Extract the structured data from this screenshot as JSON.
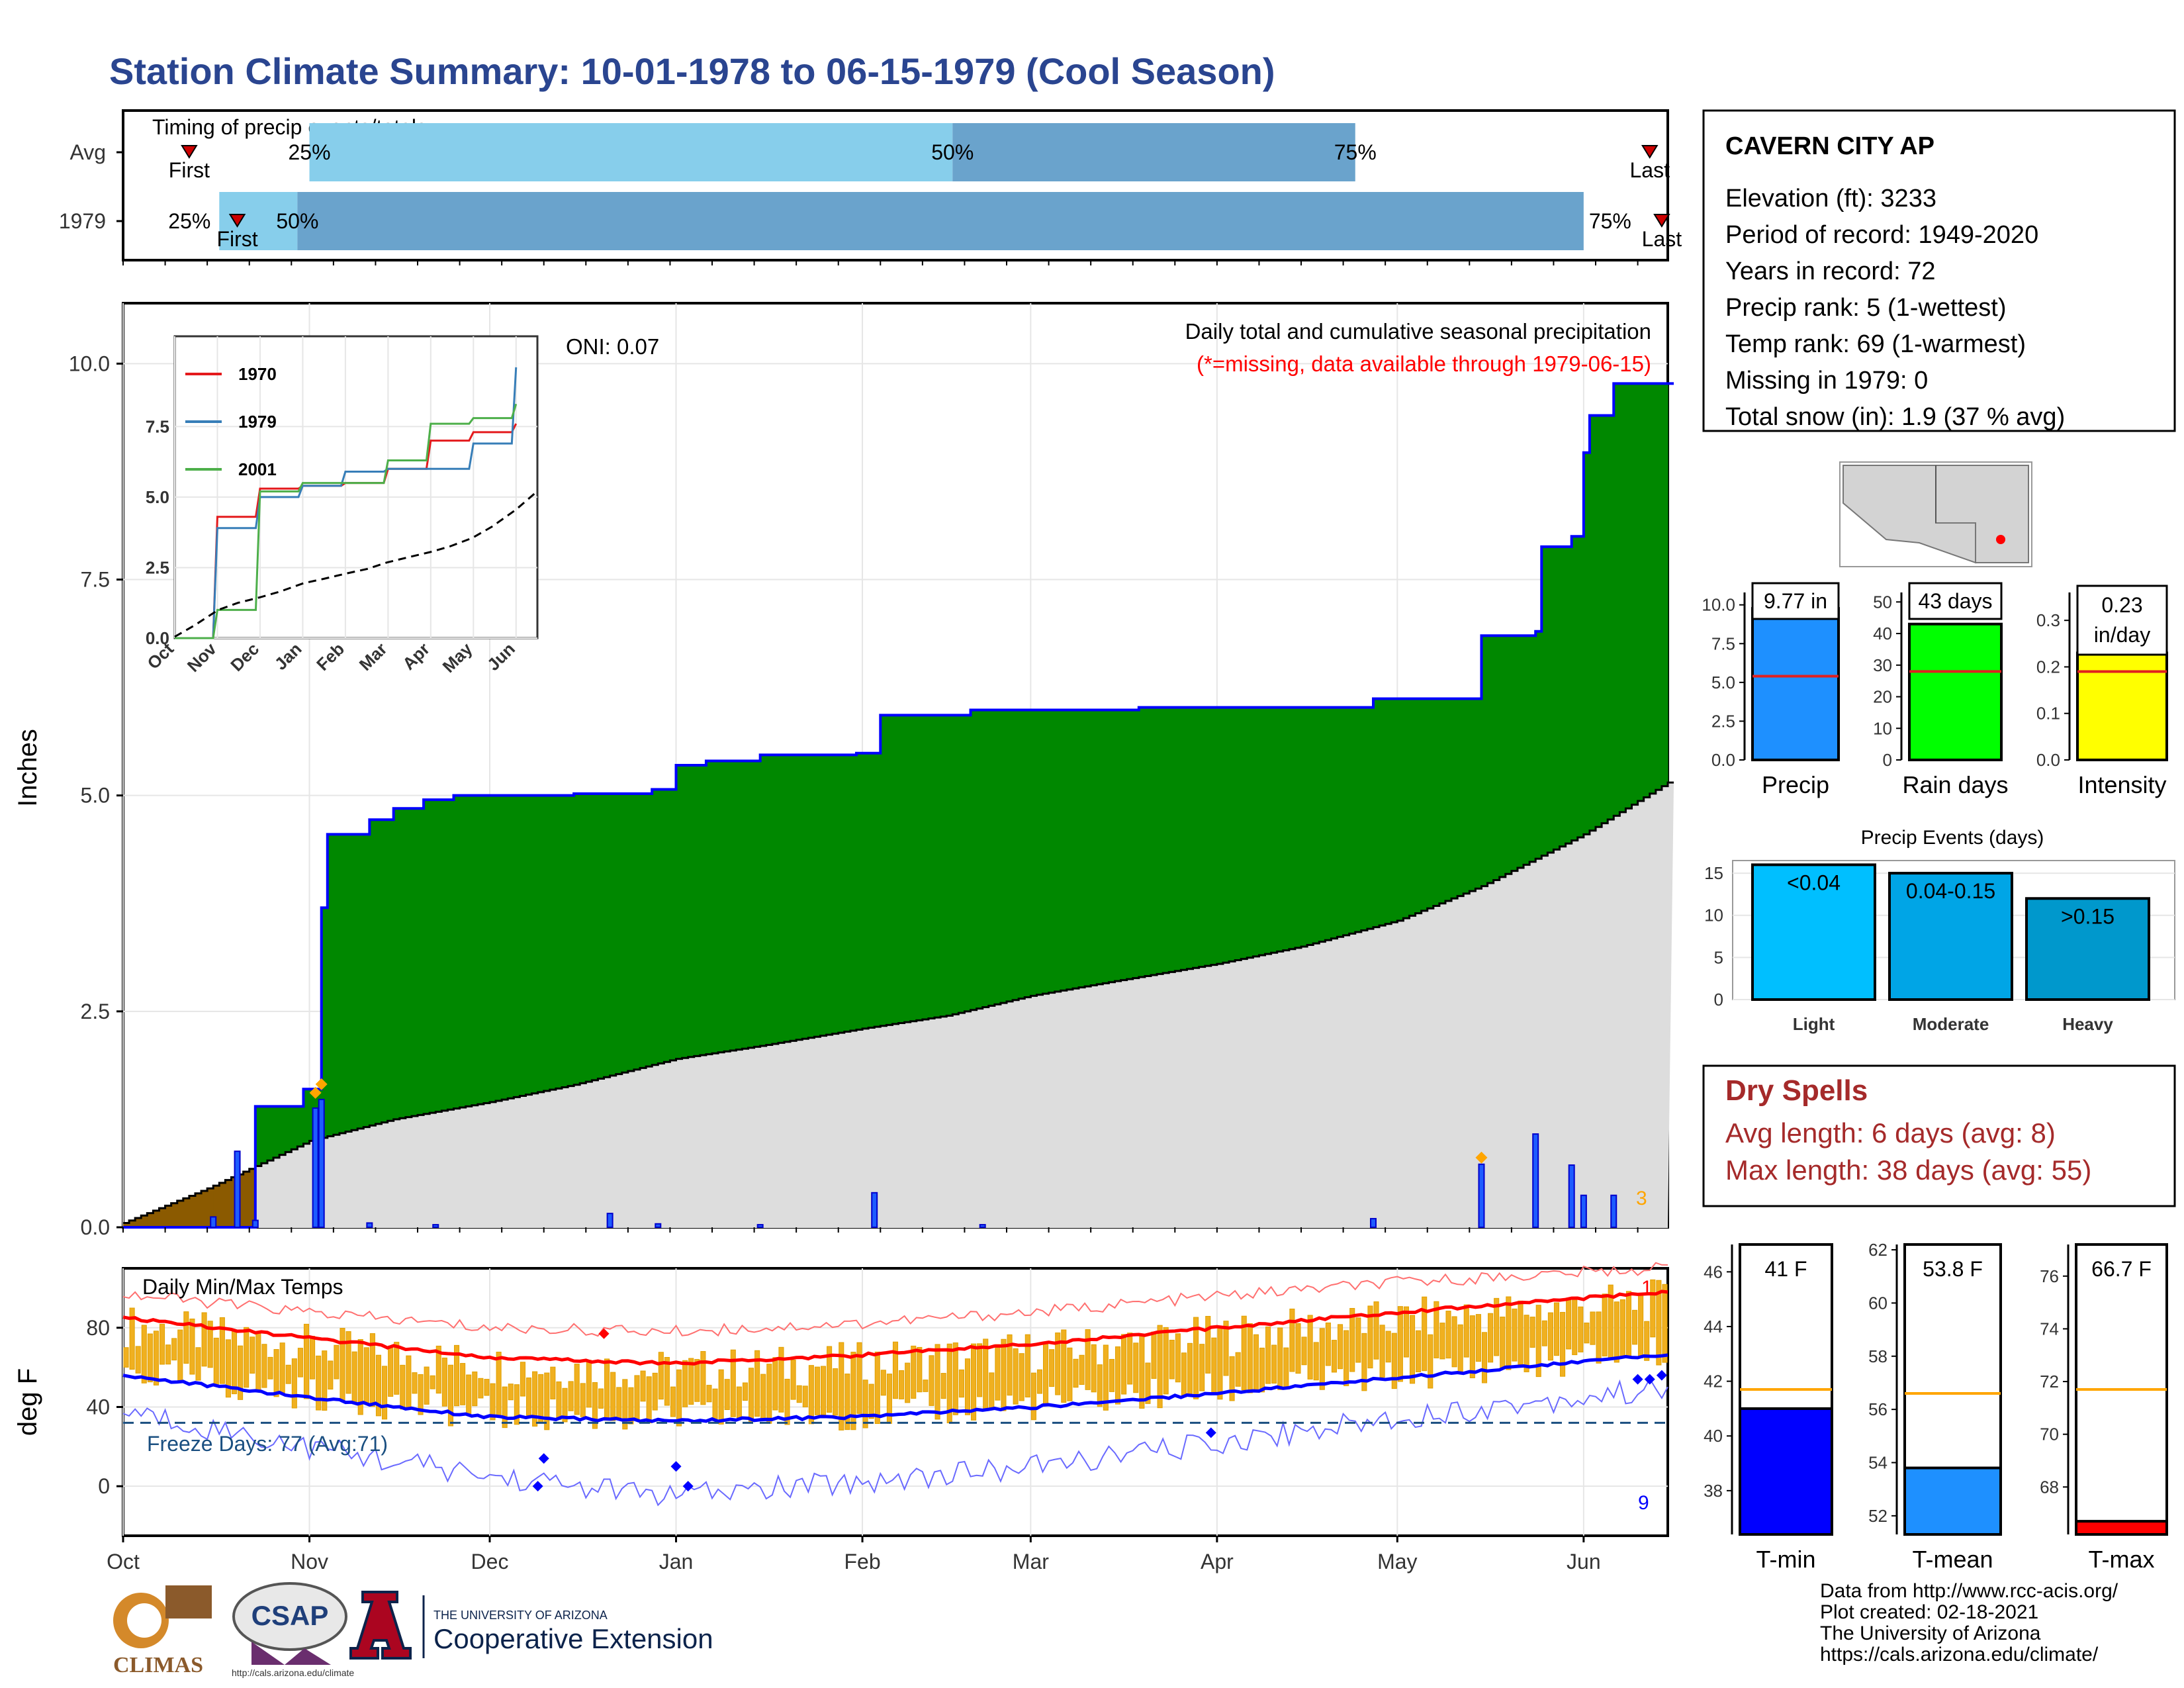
{
  "title": "Station Climate Summary: 10-01-1978 to 06-15-1979 (Cool Season)",
  "timing": {
    "caption": "Timing of precip events/totals",
    "rows": [
      {
        "label": "Avg",
        "first_date": "1978-10-12",
        "p25": "1978-11-01",
        "p50": "1979-02-16",
        "p75": "1979-04-24",
        "last_date": "1979-06-12",
        "first_label": "First",
        "last_label": "Last"
      },
      {
        "label": "1979",
        "first_date": "1978-10-20",
        "p25": "1978-10-17",
        "p50": "1978-10-30",
        "p75": "1979-06-01",
        "last_date": "1979-06-14",
        "first_label": "First",
        "last_label": "Last"
      }
    ],
    "pct_labels": [
      "25%",
      "50%",
      "75%"
    ]
  },
  "station": {
    "name": "CAVERN CITY AP",
    "lines": [
      "Elevation (ft): 3233",
      "Period of record: 1949-2020",
      "Years in record: 72",
      "Precip rank: 5 (1-wettest)",
      "Temp rank: 69 (1-warmest)",
      "Missing in 1979: 0",
      "Total snow (in): 1.9 (37 % avg)"
    ]
  },
  "main_precip": {
    "title": "Daily total and cumulative seasonal precipitation",
    "missing_note": "(*=missing, data available through 1979-06-15)",
    "oni": "ONI: 0.07",
    "ylabel": "Inches",
    "yticks": [
      "0.0",
      "2.5",
      "5.0",
      "7.5",
      "10.0"
    ],
    "missing_count": "3",
    "colors": {
      "above": "#008800",
      "below": "#8B5A00",
      "avg_fill": "#dddddd",
      "line": "#0000ff"
    }
  },
  "chart_data": [
    {
      "type": "area",
      "title": "Daily total and cumulative seasonal precipitation",
      "ylabel": "Inches",
      "ylim": [
        0,
        10.7
      ],
      "x_unit": "date",
      "series": [
        {
          "name": "Cumulative 1979",
          "x": [
            "1978-10-01",
            "1978-10-20",
            "1978-10-23",
            "1978-10-31",
            "1978-11-03",
            "1978-11-04",
            "1978-11-11",
            "1978-11-15",
            "1978-11-20",
            "1978-11-25",
            "1978-12-01",
            "1978-12-15",
            "1978-12-28",
            "1979-01-01",
            "1979-01-06",
            "1979-01-15",
            "1979-01-31",
            "1979-02-04",
            "1979-02-19",
            "1979-03-19",
            "1979-04-27",
            "1979-05-15",
            "1979-05-24",
            "1979-05-25",
            "1979-05-30",
            "1979-06-01",
            "1979-06-02",
            "1979-06-06",
            "1979-06-15"
          ],
          "y": [
            0.0,
            0.0,
            1.4,
            1.6,
            3.7,
            4.55,
            4.72,
            4.85,
            4.95,
            5.0,
            5.0,
            5.02,
            5.07,
            5.35,
            5.4,
            5.47,
            5.49,
            5.93,
            5.99,
            6.02,
            6.12,
            6.85,
            6.9,
            7.88,
            8.0,
            8.97,
            9.4,
            9.77,
            9.77
          ]
        },
        {
          "name": "Average cumulative",
          "x": [
            "1978-10-01",
            "1978-10-15",
            "1978-11-01",
            "1978-11-15",
            "1978-12-01",
            "1978-12-15",
            "1979-01-01",
            "1979-01-15",
            "1979-02-01",
            "1979-02-15",
            "1979-03-01",
            "1979-03-15",
            "1979-04-01",
            "1979-04-15",
            "1979-05-01",
            "1979-05-15",
            "1979-06-01",
            "1979-06-15"
          ],
          "y": [
            0.05,
            0.45,
            1.0,
            1.25,
            1.45,
            1.65,
            1.95,
            2.1,
            2.3,
            2.45,
            2.68,
            2.85,
            3.05,
            3.25,
            3.55,
            3.95,
            4.55,
            5.15
          ]
        },
        {
          "name": "Daily precipitation",
          "x": [
            "1978-10-16",
            "1978-10-20",
            "1978-10-23",
            "1978-11-02",
            "1978-11-03",
            "1978-11-11",
            "1978-11-22",
            "1978-12-21",
            "1978-12-29",
            "1979-01-15",
            "1979-02-03",
            "1979-02-21",
            "1979-04-27",
            "1979-05-15",
            "1979-05-24",
            "1979-05-30",
            "1979-06-01",
            "1979-06-06"
          ],
          "y": [
            0.12,
            0.88,
            0.08,
            1.38,
            1.48,
            0.05,
            0.03,
            0.16,
            0.04,
            0.03,
            0.4,
            0.03,
            0.1,
            0.73,
            1.08,
            0.72,
            0.37,
            0.37
          ]
        }
      ]
    },
    {
      "type": "line",
      "title": "Historical cumulative (inset)",
      "x": [
        "Oct",
        "Nov",
        "Dec",
        "Jan",
        "Feb",
        "Mar",
        "Apr",
        "May",
        "Jun"
      ],
      "ylim": [
        0,
        10.7
      ],
      "series": [
        {
          "name": "1970",
          "values": [
            0.0,
            4.3,
            5.3,
            5.4,
            5.5,
            6.0,
            7.0,
            7.3,
            7.6
          ]
        },
        {
          "name": "1979",
          "values": [
            0.0,
            3.9,
            5.0,
            5.4,
            5.9,
            6.0,
            6.0,
            6.9,
            9.6
          ]
        },
        {
          "name": "2001",
          "values": [
            0.0,
            1.0,
            5.2,
            5.5,
            5.5,
            6.3,
            7.6,
            7.8,
            8.3
          ]
        }
      ]
    },
    {
      "type": "bar",
      "title": "Precip",
      "categories": [
        "Precip"
      ],
      "values": [
        9.77
      ],
      "avg": 5.4,
      "label": "9.77 in",
      "ylim": [
        0,
        10.8
      ]
    },
    {
      "type": "bar",
      "title": "Rain days",
      "categories": [
        "Rain days"
      ],
      "values": [
        43
      ],
      "avg": 28,
      "label": "43 days",
      "ylim": [
        0,
        53
      ]
    },
    {
      "type": "bar",
      "title": "Intensity",
      "categories": [
        "Intensity"
      ],
      "values": [
        0.23
      ],
      "avg": 0.19,
      "label": "0.23 in/day",
      "ylim": [
        0,
        0.36
      ]
    },
    {
      "type": "bar",
      "title": "Precip Events (days)",
      "categories": [
        "Light",
        "Moderate",
        "Heavy"
      ],
      "labels": [
        "<0.04",
        "0.04-0.15",
        ">0.15"
      ],
      "values": [
        16,
        15,
        12
      ],
      "ylim": [
        0,
        16.5
      ]
    },
    {
      "type": "line",
      "title": "Daily Min/Max Temps",
      "ylabel": "deg F",
      "ylim": [
        -25,
        110
      ],
      "x": [
        "Oct",
        "Nov",
        "Dec",
        "Jan",
        "Feb",
        "Mar",
        "Apr",
        "May",
        "Jun"
      ],
      "series": [
        {
          "name": "Avg max",
          "values": [
            85,
            75,
            65,
            62,
            66,
            72,
            80,
            88,
            95
          ]
        },
        {
          "name": "Avg min",
          "values": [
            56,
            45,
            35,
            33,
            35,
            40,
            47,
            55,
            63
          ]
        },
        {
          "name": "Record high",
          "values": [
            97,
            88,
            80,
            78,
            82,
            88,
            96,
            103,
            108
          ]
        },
        {
          "name": "Record low",
          "values": [
            38,
            20,
            5,
            -5,
            2,
            10,
            22,
            35,
            45
          ]
        }
      ],
      "freeze_line": 32
    },
    {
      "type": "bar",
      "title": "T-min",
      "categories": [
        "T-min"
      ],
      "values": [
        41
      ],
      "avg": 41.7,
      "label": "41 F",
      "ylim": [
        36.4,
        47
      ]
    },
    {
      "type": "bar",
      "title": "T-mean",
      "categories": [
        "T-mean"
      ],
      "values": [
        53.8
      ],
      "avg": 56.6,
      "label": "53.8 F",
      "ylim": [
        51.3,
        62.2
      ]
    },
    {
      "type": "bar",
      "title": "T-max",
      "categories": [
        "T-max"
      ],
      "values": [
        66.7
      ],
      "avg": 71.7,
      "label": "66.7 F",
      "ylim": [
        66.2,
        77.2
      ]
    }
  ],
  "inset": {
    "legend": [
      "1970",
      "1979",
      "2001"
    ],
    "colors": [
      "#e41a1c",
      "#377eb8",
      "#4daf4a"
    ],
    "xticks": [
      "Oct",
      "Nov",
      "Dec",
      "Jan",
      "Feb",
      "Mar",
      "Apr",
      "May",
      "Jun"
    ],
    "yticks": [
      "0.0",
      "2.5",
      "5.0",
      "7.5"
    ]
  },
  "small_bars": {
    "precip": {
      "label": "Precip",
      "value_label": "9.77 in",
      "color": "#1e90ff",
      "yticks": [
        "0.0",
        "2.5",
        "5.0",
        "7.5",
        "10.0"
      ]
    },
    "raindays": {
      "label": "Rain days",
      "value_label": "43 days",
      "color": "#00ff00",
      "yticks": [
        "0",
        "10",
        "20",
        "30",
        "40",
        "50"
      ]
    },
    "intensity": {
      "label": "Intensity",
      "value_label_1": "0.23",
      "value_label_2": "in/day",
      "color": "#ffff00",
      "yticks": [
        "0.0",
        "0.1",
        "0.2",
        "0.3"
      ]
    }
  },
  "events": {
    "title": "Precip Events (days)",
    "categories": [
      "Light",
      "Moderate",
      "Heavy"
    ],
    "labels": [
      "<0.04",
      "0.04-0.15",
      ">0.15"
    ],
    "colors": [
      "#00bfff",
      "#00a5e6",
      "#0098cc"
    ],
    "yticks": [
      "0",
      "5",
      "10",
      "15"
    ]
  },
  "dry_spells": {
    "title": "Dry Spells",
    "line1": "Avg length: 6 days (avg: 8)",
    "line2": "Max length: 38 days (avg: 55)",
    "color": "#a52a2a"
  },
  "temps": {
    "title": "Daily Min/Max Temps",
    "ylabel": "deg F",
    "yticks": [
      "0",
      "40",
      "80"
    ],
    "freeze": "Freeze Days: 77 (Avg:71)",
    "high_count": "1",
    "low_count": "9",
    "xticks": [
      "Oct",
      "Nov",
      "Dec",
      "Jan",
      "Feb",
      "Mar",
      "Apr",
      "May",
      "Jun"
    ]
  },
  "temp_bars": {
    "tmin": {
      "label": "T-min",
      "value_label": "41 F",
      "color": "#0000ff",
      "yticks": [
        "38",
        "40",
        "42",
        "44",
        "46"
      ]
    },
    "tmean": {
      "label": "T-mean",
      "value_label": "53.8 F",
      "color": "#1e90ff",
      "yticks": [
        "52",
        "54",
        "56",
        "58",
        "60",
        "62"
      ]
    },
    "tmax": {
      "label": "T-max",
      "value_label": "66.7 F",
      "color": "#ff0000",
      "yticks": [
        "68",
        "70",
        "72",
        "74",
        "76"
      ]
    }
  },
  "logos": {
    "climas": "CLIMAS",
    "csap": "CSAP",
    "csap_url": "http://cals.arizona.edu/climate",
    "ua_small": "THE UNIVERSITY OF ARIZONA",
    "ua_big": "Cooperative Extension"
  },
  "credits": [
    "Data from http://www.rcc-acis.org/",
    "Plot created: 02-18-2021",
    "The University of Arizona",
    "https://cals.arizona.edu/climate/"
  ]
}
